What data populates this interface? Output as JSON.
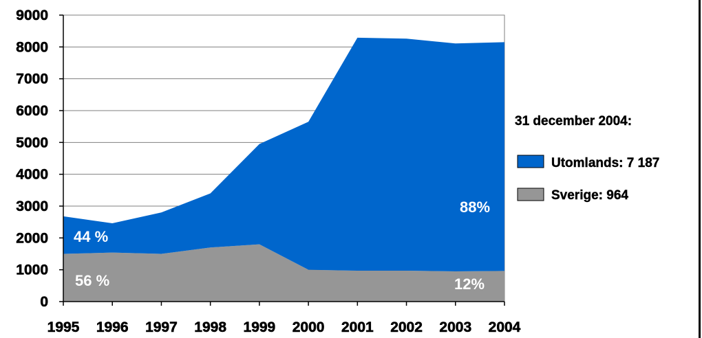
{
  "chart_data": {
    "type": "area",
    "stacked": true,
    "x": [
      "1995",
      "1996",
      "1997",
      "1998",
      "1999",
      "2000",
      "2001",
      "2002",
      "2003",
      "2004"
    ],
    "series": [
      {
        "name": "Sverige",
        "color": "#969696",
        "values": [
          1500,
          1540,
          1500,
          1700,
          1800,
          1000,
          970,
          970,
          950,
          964
        ]
      },
      {
        "name": "Utomlands",
        "color": "#0066cc",
        "values": [
          1180,
          920,
          1300,
          1700,
          3150,
          4650,
          7320,
          7290,
          7160,
          7187
        ]
      }
    ],
    "ylim": [
      0,
      9000
    ],
    "yticks": [
      "0",
      "1000",
      "2000",
      "3000",
      "4000",
      "5000",
      "6000",
      "7000",
      "8000",
      "9000"
    ],
    "grid": true,
    "annotations": {
      "sverige_1995": "56 %",
      "utomlands_1995": "44 %",
      "utomlands_2004": "88%",
      "sverige_2004": "12%"
    },
    "legend": {
      "placement": "right",
      "title": "31 december 2004:",
      "items": [
        {
          "label": "Utomlands: 7 187",
          "color": "#0066cc"
        },
        {
          "label": "Sverige: 964",
          "color": "#969696"
        }
      ]
    }
  }
}
